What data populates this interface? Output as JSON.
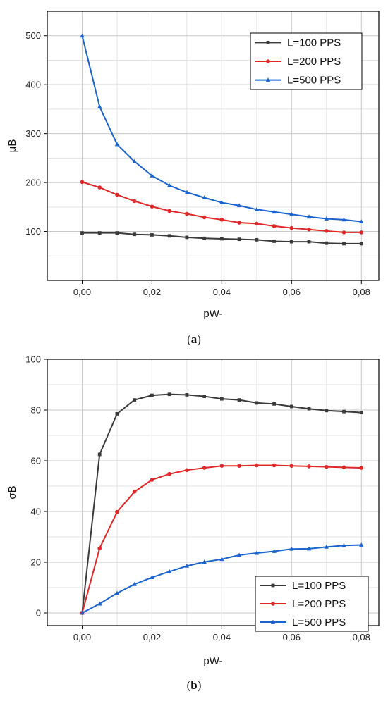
{
  "colors": {
    "L100": "#3a3a3a",
    "L200": "#e02828",
    "L500": "#1a63cc",
    "grid": "#c8c8c8",
    "minor_grid": "#e3e3e3"
  },
  "chart_data": [
    {
      "type": "line",
      "caption": "(a)",
      "caption_letter": "a",
      "xlabel": "pW-",
      "ylabel": "μB",
      "xlim": [
        -0.01,
        0.085
      ],
      "ylim": [
        0,
        550
      ],
      "xticks": [
        0,
        0.02,
        0.04,
        0.06,
        0.08
      ],
      "xtick_labels": [
        "0,00",
        "0,02",
        "0,04",
        "0,06",
        "0,08"
      ],
      "yticks": [
        100,
        200,
        300,
        400,
        500
      ],
      "ytick_labels": [
        "100",
        "200",
        "300",
        "400",
        "500"
      ],
      "grid": true,
      "legend_position": "top-right",
      "x": [
        0,
        0.005,
        0.01,
        0.015,
        0.02,
        0.025,
        0.03,
        0.035,
        0.04,
        0.045,
        0.05,
        0.055,
        0.06,
        0.065,
        0.07,
        0.075,
        0.08
      ],
      "series": [
        {
          "name": "L=100 PPS",
          "color": "#3a3a3a",
          "marker": "square",
          "values": [
            97,
            97,
            97,
            94,
            93,
            91,
            88,
            86,
            85,
            84,
            83,
            80,
            79,
            79,
            76,
            75,
            75
          ]
        },
        {
          "name": "L=200 PPS",
          "color": "#e02828",
          "marker": "circle",
          "values": [
            201,
            190,
            175,
            162,
            151,
            142,
            136,
            129,
            124,
            118,
            116,
            111,
            107,
            104,
            101,
            98,
            98
          ]
        },
        {
          "name": "L=500 PPS",
          "color": "#1a63cc",
          "marker": "triangle",
          "values": [
            500,
            355,
            278,
            243,
            214,
            194,
            180,
            169,
            159,
            153,
            145,
            140,
            135,
            130,
            126,
            124,
            120
          ]
        }
      ]
    },
    {
      "type": "line",
      "caption": "(b)",
      "caption_letter": "b",
      "xlabel": "pW-",
      "ylabel": "σB",
      "xlim": [
        -0.01,
        0.085
      ],
      "ylim": [
        -5,
        100
      ],
      "xticks": [
        0,
        0.02,
        0.04,
        0.06,
        0.08
      ],
      "xtick_labels": [
        "0,00",
        "0,02",
        "0,04",
        "0,06",
        "0,08"
      ],
      "yticks": [
        0,
        20,
        40,
        60,
        80,
        100
      ],
      "ytick_labels": [
        "0",
        "20",
        "40",
        "60",
        "80",
        "100"
      ],
      "grid": true,
      "legend_position": "bottom-right",
      "x": [
        0,
        0.005,
        0.01,
        0.015,
        0.02,
        0.025,
        0.03,
        0.035,
        0.04,
        0.045,
        0.05,
        0.055,
        0.06,
        0.065,
        0.07,
        0.075,
        0.08
      ],
      "series": [
        {
          "name": "L=100 PPS",
          "color": "#3a3a3a",
          "marker": "square",
          "values": [
            0,
            62.5,
            78.5,
            84,
            85.8,
            86.2,
            86,
            85.4,
            84.4,
            84,
            82.8,
            82.4,
            81.4,
            80.5,
            79.8,
            79.4,
            79
          ]
        },
        {
          "name": "L=200 PPS",
          "color": "#e02828",
          "marker": "circle",
          "values": [
            0,
            25.5,
            39.8,
            47.8,
            52.5,
            54.8,
            56.3,
            57.2,
            58,
            58,
            58.2,
            58.2,
            58,
            57.8,
            57.6,
            57.4,
            57.2
          ]
        },
        {
          "name": "L=500 PPS",
          "color": "#1a63cc",
          "marker": "triangle",
          "values": [
            0,
            3.6,
            7.8,
            11.3,
            14,
            16.3,
            18.5,
            20.1,
            21.2,
            22.8,
            23.6,
            24.3,
            25.2,
            25.3,
            26,
            26.6,
            26.8
          ]
        }
      ]
    }
  ]
}
